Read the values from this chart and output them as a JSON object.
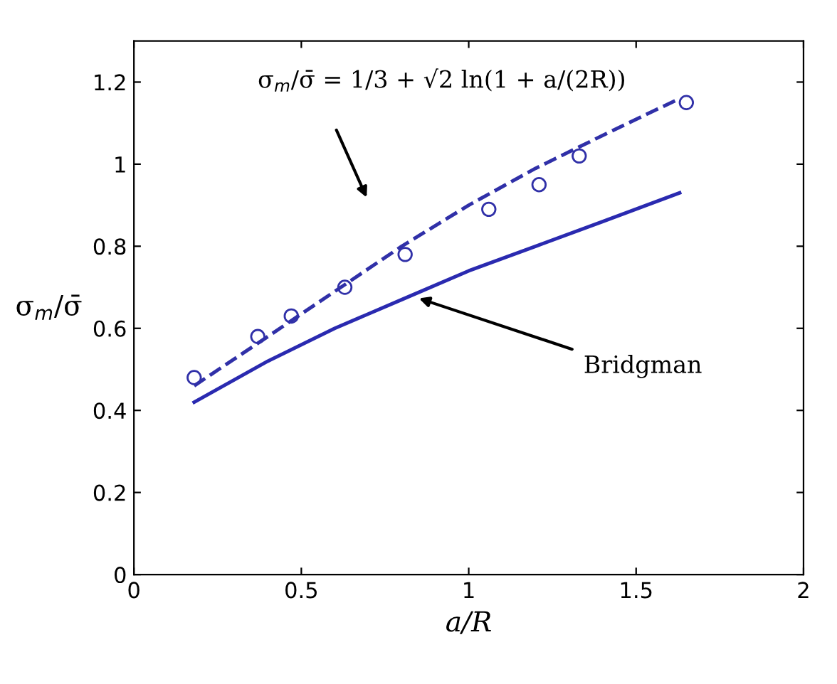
{
  "chart_data": {
    "type": "line",
    "xlabel": "a/R",
    "ylabel": "σ$_{m}$/σ̄",
    "xlim": [
      0,
      2
    ],
    "ylim": [
      0,
      1.3
    ],
    "xticks": [
      0,
      0.5,
      1,
      1.5,
      2
    ],
    "yticks": [
      0,
      0.2,
      0.4,
      0.6,
      0.8,
      1,
      1.2
    ],
    "grid": false,
    "legend": false,
    "series": [
      {
        "line_style": "dashed",
        "color": "#3030a8",
        "x": [
          0.18,
          0.4,
          0.6,
          0.8,
          1.0,
          1.2,
          1.4,
          1.63
        ],
        "values": [
          0.46,
          0.58,
          0.69,
          0.8,
          0.9,
          0.99,
          1.07,
          1.16
        ]
      },
      {
        "line_style": "solid",
        "color": "#2a2ab0",
        "x": [
          0.18,
          0.4,
          0.6,
          0.8,
          1.0,
          1.2,
          1.4,
          1.63
        ],
        "values": [
          0.42,
          0.52,
          0.6,
          0.67,
          0.74,
          0.8,
          0.86,
          0.93
        ]
      },
      {
        "type": "scatter",
        "marker": "circle",
        "color": "#3030a8",
        "x": [
          0.18,
          0.37,
          0.47,
          0.63,
          0.81,
          1.06,
          1.21,
          1.33,
          1.65
        ],
        "values": [
          0.48,
          0.58,
          0.63,
          0.7,
          0.78,
          0.89,
          0.95,
          1.02,
          1.15
        ]
      }
    ],
    "annotations": [
      "σ$_{m}$/σ̄ = 1/3 + √2 ln(1 + a/(2R))",
      "Bridgman"
    ]
  }
}
